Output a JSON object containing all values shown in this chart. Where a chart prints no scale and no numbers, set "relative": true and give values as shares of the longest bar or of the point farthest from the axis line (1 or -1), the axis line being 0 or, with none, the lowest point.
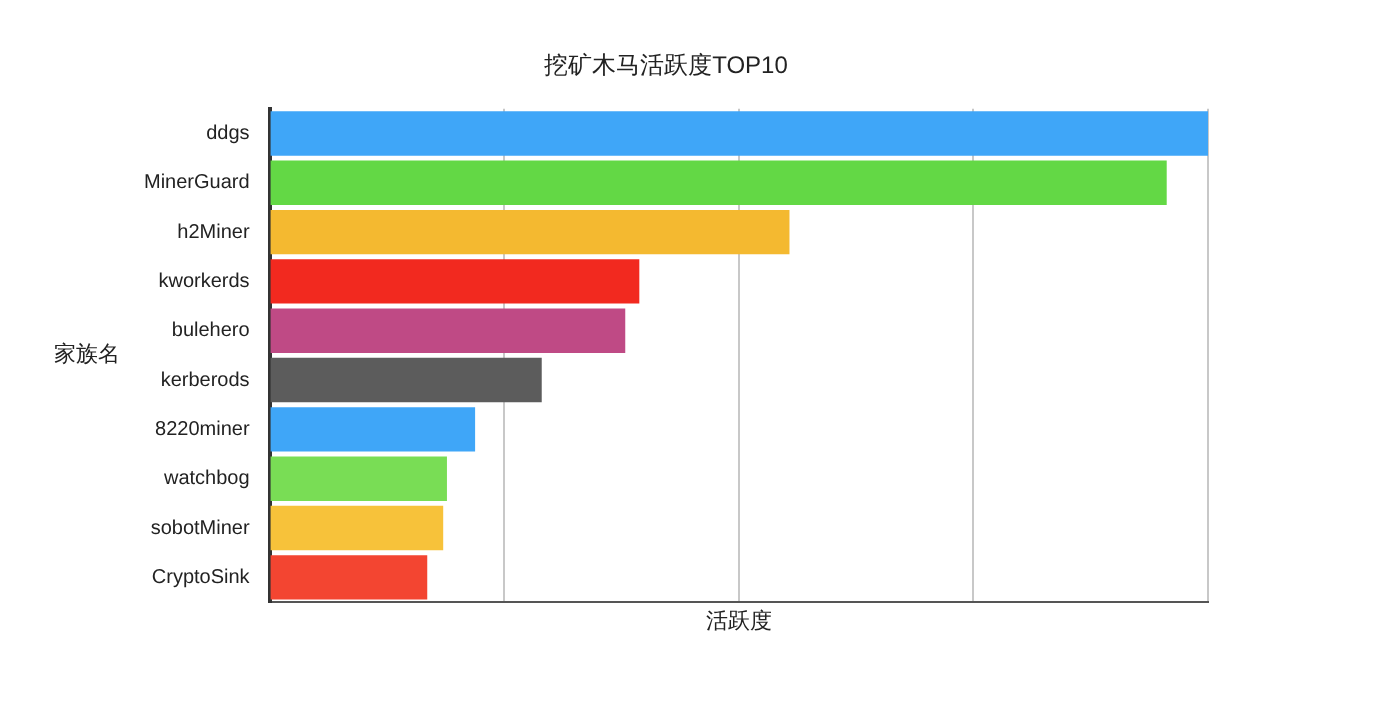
{
  "chart_data": {
    "type": "bar",
    "orientation": "horizontal",
    "relative": true,
    "title": "挖矿木马活跃度TOP10",
    "xlabel": "活跃度",
    "ylabel": "家族名",
    "grid": "x",
    "legend": false,
    "categories": [
      "ddgs",
      "MinerGuard",
      "h2Miner",
      "kworkerds",
      "bulehero",
      "kerberods",
      "8220miner",
      "watchbog",
      "sobotMiner",
      "CryptoSink"
    ],
    "values": [
      1,
      0.956,
      0.554,
      0.394,
      0.379,
      0.29,
      0.219,
      0.189,
      0.185,
      0.168
    ],
    "colors": [
      "#3fa6f8",
      "#63d845",
      "#f4b930",
      "#f2291f",
      "#bf4a85",
      "#5c5c5c",
      "#3fa6f8",
      "#79dd55",
      "#f7c23a",
      "#f34531"
    ]
  }
}
